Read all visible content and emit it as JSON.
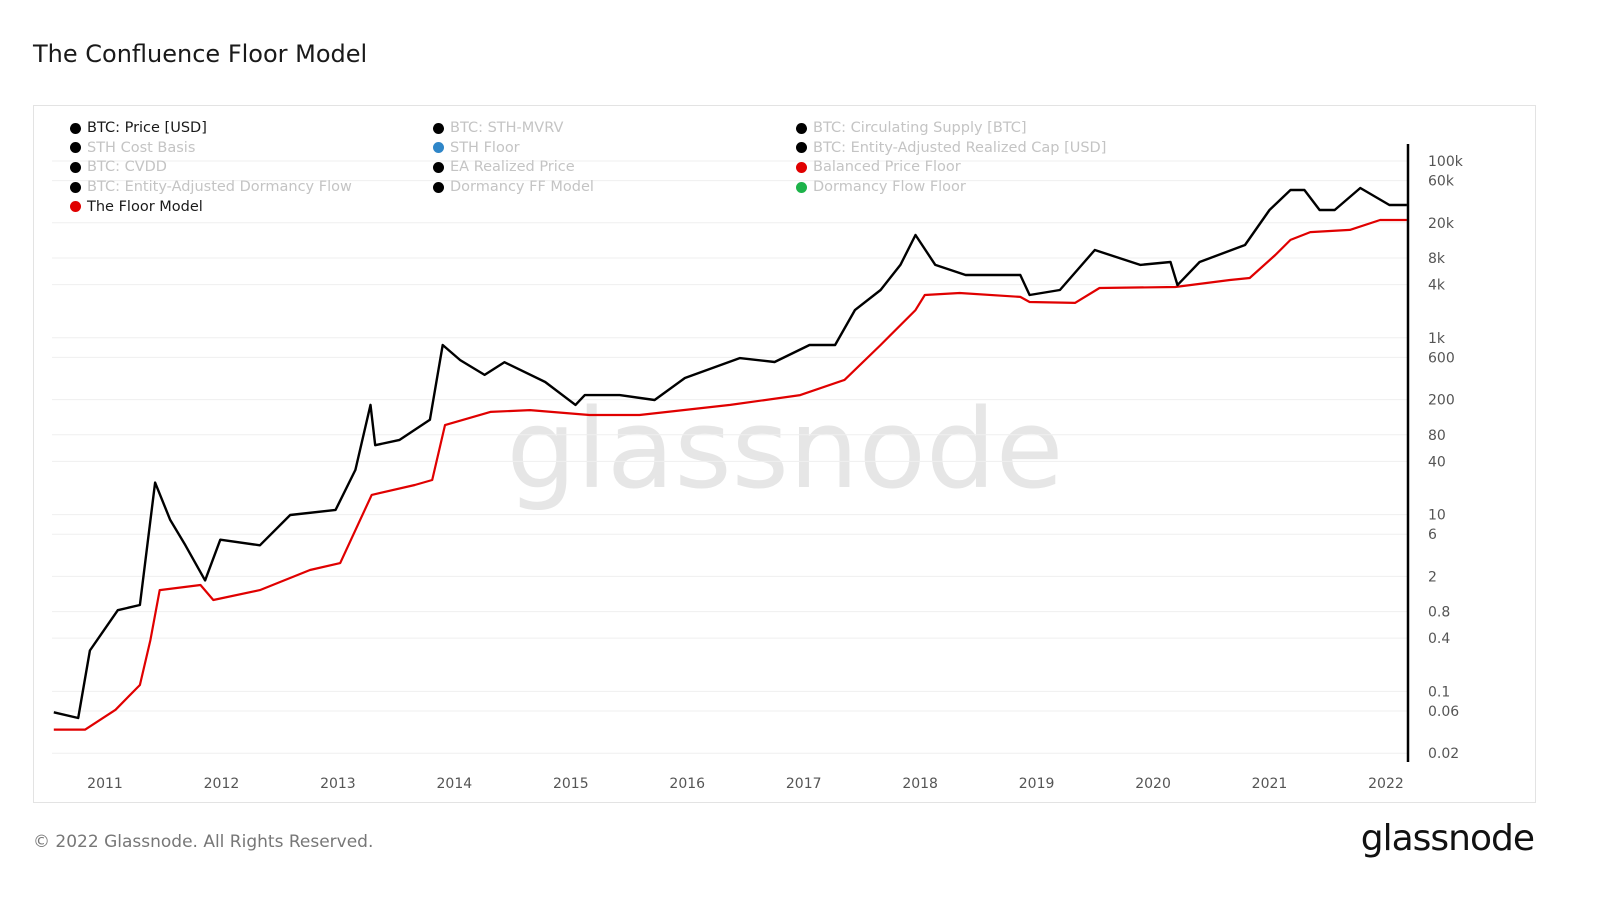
{
  "title": "The Confluence Floor Model",
  "footer": "© 2022 Glassnode. All Rights Reserved.",
  "logo": "glassnode",
  "watermark": "glassnode",
  "legend": [
    {
      "label": "BTC: Price [USD]",
      "color": "#000000",
      "active": true
    },
    {
      "label": "STH Cost Basis",
      "color": "#000000",
      "active": false
    },
    {
      "label": "BTC: CVDD",
      "color": "#000000",
      "active": false
    },
    {
      "label": "BTC: Entity-Adjusted Dormancy Flow",
      "color": "#000000",
      "active": false
    },
    {
      "label": "The Floor Model",
      "color": "#e00000",
      "active": true
    },
    {
      "label": "BTC: STH-MVRV",
      "color": "#000000",
      "active": false
    },
    {
      "label": "STH Floor",
      "color": "#2f86c8",
      "active": false
    },
    {
      "label": "EA Realized Price",
      "color": "#000000",
      "active": false
    },
    {
      "label": "Dormancy FF Model",
      "color": "#000000",
      "active": false
    },
    {
      "label": "BTC: Circulating Supply [BTC]",
      "color": "#000000",
      "active": false
    },
    {
      "label": "BTC: Entity-Adjusted Realized Cap [USD]",
      "color": "#000000",
      "active": false
    },
    {
      "label": "Balanced Price Floor",
      "color": "#e00000",
      "active": false
    },
    {
      "label": "Dormancy Flow Floor",
      "color": "#1db34a",
      "active": false
    }
  ],
  "chart_data": {
    "type": "line",
    "title": "The Confluence Floor Model",
    "y_scale": "log",
    "y_axis_position": "right",
    "ylim": [
      0.02,
      100000
    ],
    "xlim": [
      2010.55,
      2022.2
    ],
    "grid": true,
    "legend_position": "top-left",
    "x_ticks": [
      "2011",
      "2012",
      "2013",
      "2014",
      "2015",
      "2016",
      "2017",
      "2018",
      "2019",
      "2020",
      "2021",
      "2022"
    ],
    "y_ticks": [
      {
        "value": 100000,
        "label": "100k"
      },
      {
        "value": 60000,
        "label": "60k"
      },
      {
        "value": 20000,
        "label": "20k"
      },
      {
        "value": 8000,
        "label": "8k"
      },
      {
        "value": 4000,
        "label": "4k"
      },
      {
        "value": 1000,
        "label": "1k"
      },
      {
        "value": 600,
        "label": "600"
      },
      {
        "value": 200,
        "label": "200"
      },
      {
        "value": 80,
        "label": "80"
      },
      {
        "value": 40,
        "label": "40"
      },
      {
        "value": 10,
        "label": "10"
      },
      {
        "value": 6,
        "label": "6"
      },
      {
        "value": 2,
        "label": "2"
      },
      {
        "value": 0.8,
        "label": "0.8"
      },
      {
        "value": 0.4,
        "label": "0.4"
      },
      {
        "value": 0.1,
        "label": "0.1"
      },
      {
        "value": 0.06,
        "label": "0.06"
      },
      {
        "value": 0.02,
        "label": "0.02"
      }
    ],
    "series": [
      {
        "name": "BTC: Price [USD]",
        "color": "#000000",
        "points": [
          [
            2010.56,
            0.058
          ],
          [
            2010.77,
            0.05
          ],
          [
            2010.87,
            0.29
          ],
          [
            2011.11,
            0.83
          ],
          [
            2011.3,
            0.95
          ],
          [
            2011.43,
            23
          ],
          [
            2011.56,
            8.7
          ],
          [
            2011.69,
            4.5
          ],
          [
            2011.86,
            1.8
          ],
          [
            2011.99,
            5.2
          ],
          [
            2012.33,
            4.5
          ],
          [
            2012.59,
            9.9
          ],
          [
            2012.98,
            11.3
          ],
          [
            2013.15,
            32
          ],
          [
            2013.28,
            174
          ],
          [
            2013.32,
            61
          ],
          [
            2013.53,
            70
          ],
          [
            2013.79,
            118
          ],
          [
            2013.9,
            830
          ],
          [
            2014.05,
            560
          ],
          [
            2014.26,
            380
          ],
          [
            2014.43,
            530
          ],
          [
            2014.78,
            316
          ],
          [
            2015.04,
            174
          ],
          [
            2015.12,
            225
          ],
          [
            2015.42,
            225
          ],
          [
            2015.72,
            198
          ],
          [
            2015.98,
            351
          ],
          [
            2016.45,
            590
          ],
          [
            2016.75,
            532
          ],
          [
            2017.05,
            830
          ],
          [
            2017.27,
            830
          ],
          [
            2017.44,
            2060
          ],
          [
            2017.66,
            3470
          ],
          [
            2017.83,
            6670
          ],
          [
            2017.96,
            14550
          ],
          [
            2018.13,
            6670
          ],
          [
            2018.39,
            5130
          ],
          [
            2018.86,
            5130
          ],
          [
            2018.94,
            3050
          ],
          [
            2019.2,
            3470
          ],
          [
            2019.5,
            9840
          ],
          [
            2019.89,
            6670
          ],
          [
            2020.15,
            7200
          ],
          [
            2020.21,
            3950
          ],
          [
            2020.4,
            7200
          ],
          [
            2020.79,
            11200
          ],
          [
            2021.0,
            27900
          ],
          [
            2021.18,
            47000
          ],
          [
            2021.3,
            47000
          ],
          [
            2021.43,
            27900
          ],
          [
            2021.56,
            27900
          ],
          [
            2021.78,
            49500
          ],
          [
            2022.03,
            31800
          ],
          [
            2022.18,
            31800
          ]
        ]
      },
      {
        "name": "The Floor Model",
        "color": "#e00000",
        "points": [
          [
            2010.56,
            0.037
          ],
          [
            2010.83,
            0.037
          ],
          [
            2011.09,
            0.062
          ],
          [
            2011.3,
            0.118
          ],
          [
            2011.39,
            0.38
          ],
          [
            2011.47,
            1.4
          ],
          [
            2011.82,
            1.6
          ],
          [
            2011.93,
            1.08
          ],
          [
            2012.33,
            1.4
          ],
          [
            2012.76,
            2.36
          ],
          [
            2013.02,
            2.83
          ],
          [
            2013.29,
            16.7
          ],
          [
            2013.66,
            21.6
          ],
          [
            2013.81,
            24.6
          ],
          [
            2013.92,
            103
          ],
          [
            2014.31,
            145
          ],
          [
            2014.65,
            152
          ],
          [
            2015.16,
            134
          ],
          [
            2015.59,
            134
          ],
          [
            2016.37,
            174
          ],
          [
            2016.97,
            225
          ],
          [
            2017.35,
            334
          ],
          [
            2017.66,
            830
          ],
          [
            2017.96,
            2060
          ],
          [
            2018.04,
            3050
          ],
          [
            2018.34,
            3210
          ],
          [
            2018.86,
            2900
          ],
          [
            2018.94,
            2540
          ],
          [
            2019.33,
            2480
          ],
          [
            2019.54,
            3660
          ],
          [
            2020.19,
            3760
          ],
          [
            2020.66,
            4510
          ],
          [
            2020.83,
            4750
          ],
          [
            2021.05,
            8650
          ],
          [
            2021.18,
            12800
          ],
          [
            2021.35,
            15700
          ],
          [
            2021.69,
            16600
          ],
          [
            2021.95,
            21500
          ],
          [
            2022.18,
            21500
          ]
        ]
      }
    ]
  }
}
